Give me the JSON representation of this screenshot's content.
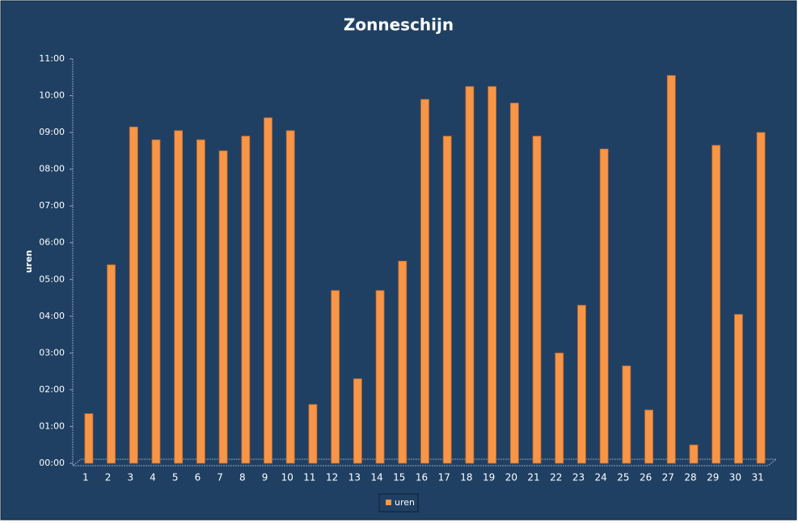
{
  "chart_data": {
    "type": "bar",
    "title": "Zonneschijn",
    "y_label": "uren",
    "categories": [
      "1",
      "2",
      "3",
      "4",
      "5",
      "6",
      "7",
      "8",
      "9",
      "10",
      "11",
      "12",
      "13",
      "14",
      "15",
      "16",
      "17",
      "18",
      "19",
      "20",
      "21",
      "22",
      "23",
      "24",
      "25",
      "26",
      "27",
      "28",
      "29",
      "30",
      "31"
    ],
    "series": [
      {
        "name": "uren",
        "color": "#f79646",
        "values": [
          1.35,
          5.4,
          9.15,
          8.8,
          9.05,
          8.8,
          8.5,
          8.9,
          9.4,
          9.05,
          1.6,
          4.7,
          2.3,
          4.7,
          5.5,
          9.9,
          8.9,
          10.25,
          10.25,
          9.8,
          8.9,
          3.0,
          4.3,
          8.55,
          2.65,
          1.45,
          10.55,
          0.5,
          8.65,
          4.05,
          9.0
        ]
      }
    ],
    "ylim": [
      0,
      11
    ],
    "yticks": [
      {
        "value": 0,
        "label": "00:00"
      },
      {
        "value": 1,
        "label": "01:00"
      },
      {
        "value": 2,
        "label": "02:00"
      },
      {
        "value": 3,
        "label": "03:00"
      },
      {
        "value": 4,
        "label": "04:00"
      },
      {
        "value": 5,
        "label": "05:00"
      },
      {
        "value": 6,
        "label": "06:00"
      },
      {
        "value": 7,
        "label": "07:00"
      },
      {
        "value": 8,
        "label": "08:00"
      },
      {
        "value": 9,
        "label": "09:00"
      },
      {
        "value": 10,
        "label": "10:00"
      },
      {
        "value": 11,
        "label": "11:00"
      }
    ],
    "grid": false,
    "legend": "bottom"
  }
}
